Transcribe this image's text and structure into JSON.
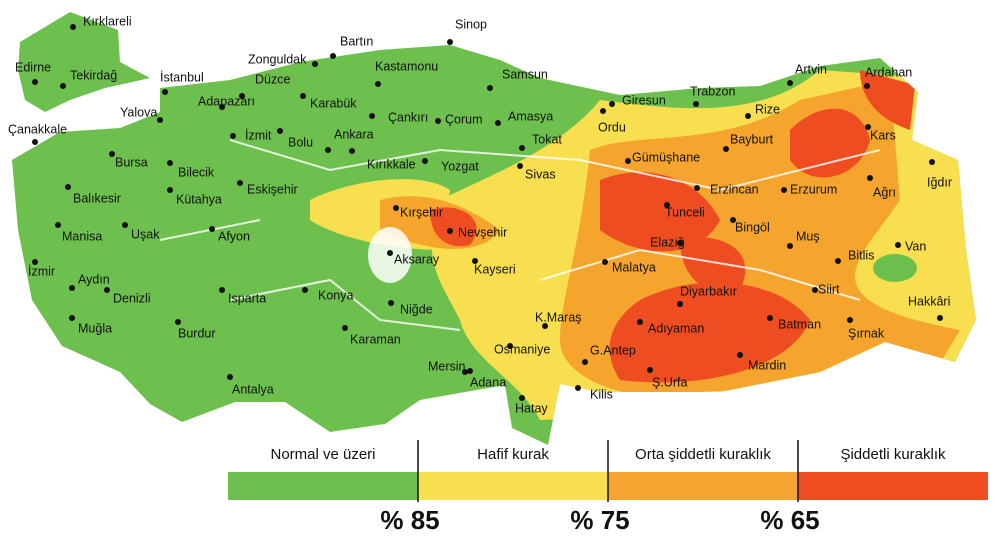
{
  "cities": [
    "Kırklareli",
    "Edirne",
    "Tekirdağ",
    "İstanbul",
    "Yalova",
    "Çanakkale",
    "Zonguldak",
    "Bartın",
    "Sinop",
    "Düzce",
    "Adapazarı",
    "Kastamonu",
    "Samsun",
    "Karabük",
    "Çankırı",
    "İzmit",
    "Bolu",
    "Ankara",
    "Çorum",
    "Amasya",
    "Tokat",
    "Ordu",
    "Giresun",
    "Trabzon",
    "Artvin",
    "Ardahan",
    "Rize",
    "Kars",
    "Bayburt",
    "Gümüşhane",
    "Erzincan",
    "Erzurum",
    "Ağrı",
    "Iğdır",
    "Bursa",
    "Bilecik",
    "Eskişehir",
    "Kırıkkale",
    "Yozgat",
    "Sivas",
    "Balıkesir",
    "Kütahya",
    "Kırşehir",
    "Tunceli",
    "Bingöl",
    "Nevşehir",
    "Elazığ",
    "Muş",
    "Manisa",
    "Uşak",
    "Afyon",
    "Bitlis",
    "Van",
    "Aksaray",
    "Kayseri",
    "Malatya",
    "İzmir",
    "Aydın",
    "Denizli",
    "Isparta",
    "Konya",
    "Diyarbakır",
    "Siirt",
    "Hakkâri",
    "Niğde",
    "K.Maraş",
    "Muğla",
    "Burdur",
    "Adıyaman",
    "Batman",
    "Şırnak",
    "Karaman",
    "Osmaniye",
    "G.Antep",
    "Mardin",
    "Mersin",
    "Adana",
    "Ş.Urfa",
    "Antalya",
    "Kilis",
    "Hatay"
  ],
  "legend": {
    "categories": [
      "Normal ve üzeri",
      "Hafif kurak",
      "Orta şiddetli kuraklık",
      "Şiddetli kuraklık"
    ],
    "thresholds": [
      "% 85",
      "% 75",
      "% 65"
    ]
  }
}
